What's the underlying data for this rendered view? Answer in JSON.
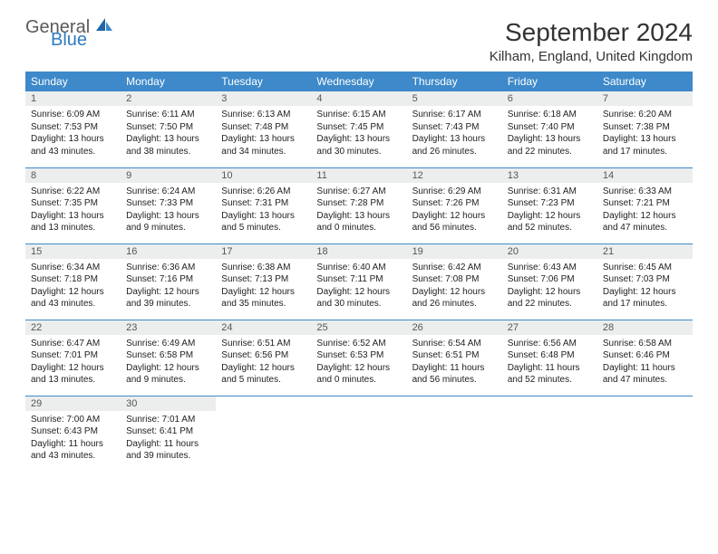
{
  "brand": {
    "general": "General",
    "blue": "Blue"
  },
  "title": "September 2024",
  "location": "Kilham, England, United Kingdom",
  "colors": {
    "header_bg": "#3d89c9",
    "header_text": "#ffffff",
    "daynum_bg": "#eceeee",
    "body_text": "#222222",
    "border": "#3d89c9",
    "logo_gray": "#5a5a5a",
    "logo_blue": "#2f7ac0"
  },
  "fonts": {
    "title_size": 28,
    "location_size": 15,
    "th_size": 12,
    "daynum_size": 11,
    "body_size": 10
  },
  "weekdays": [
    "Sunday",
    "Monday",
    "Tuesday",
    "Wednesday",
    "Thursday",
    "Friday",
    "Saturday"
  ],
  "days": [
    {
      "n": "1",
      "sr": "Sunrise: 6:09 AM",
      "ss": "Sunset: 7:53 PM",
      "dl": "Daylight: 13 hours and 43 minutes."
    },
    {
      "n": "2",
      "sr": "Sunrise: 6:11 AM",
      "ss": "Sunset: 7:50 PM",
      "dl": "Daylight: 13 hours and 38 minutes."
    },
    {
      "n": "3",
      "sr": "Sunrise: 6:13 AM",
      "ss": "Sunset: 7:48 PM",
      "dl": "Daylight: 13 hours and 34 minutes."
    },
    {
      "n": "4",
      "sr": "Sunrise: 6:15 AM",
      "ss": "Sunset: 7:45 PM",
      "dl": "Daylight: 13 hours and 30 minutes."
    },
    {
      "n": "5",
      "sr": "Sunrise: 6:17 AM",
      "ss": "Sunset: 7:43 PM",
      "dl": "Daylight: 13 hours and 26 minutes."
    },
    {
      "n": "6",
      "sr": "Sunrise: 6:18 AM",
      "ss": "Sunset: 7:40 PM",
      "dl": "Daylight: 13 hours and 22 minutes."
    },
    {
      "n": "7",
      "sr": "Sunrise: 6:20 AM",
      "ss": "Sunset: 7:38 PM",
      "dl": "Daylight: 13 hours and 17 minutes."
    },
    {
      "n": "8",
      "sr": "Sunrise: 6:22 AM",
      "ss": "Sunset: 7:35 PM",
      "dl": "Daylight: 13 hours and 13 minutes."
    },
    {
      "n": "9",
      "sr": "Sunrise: 6:24 AM",
      "ss": "Sunset: 7:33 PM",
      "dl": "Daylight: 13 hours and 9 minutes."
    },
    {
      "n": "10",
      "sr": "Sunrise: 6:26 AM",
      "ss": "Sunset: 7:31 PM",
      "dl": "Daylight: 13 hours and 5 minutes."
    },
    {
      "n": "11",
      "sr": "Sunrise: 6:27 AM",
      "ss": "Sunset: 7:28 PM",
      "dl": "Daylight: 13 hours and 0 minutes."
    },
    {
      "n": "12",
      "sr": "Sunrise: 6:29 AM",
      "ss": "Sunset: 7:26 PM",
      "dl": "Daylight: 12 hours and 56 minutes."
    },
    {
      "n": "13",
      "sr": "Sunrise: 6:31 AM",
      "ss": "Sunset: 7:23 PM",
      "dl": "Daylight: 12 hours and 52 minutes."
    },
    {
      "n": "14",
      "sr": "Sunrise: 6:33 AM",
      "ss": "Sunset: 7:21 PM",
      "dl": "Daylight: 12 hours and 47 minutes."
    },
    {
      "n": "15",
      "sr": "Sunrise: 6:34 AM",
      "ss": "Sunset: 7:18 PM",
      "dl": "Daylight: 12 hours and 43 minutes."
    },
    {
      "n": "16",
      "sr": "Sunrise: 6:36 AM",
      "ss": "Sunset: 7:16 PM",
      "dl": "Daylight: 12 hours and 39 minutes."
    },
    {
      "n": "17",
      "sr": "Sunrise: 6:38 AM",
      "ss": "Sunset: 7:13 PM",
      "dl": "Daylight: 12 hours and 35 minutes."
    },
    {
      "n": "18",
      "sr": "Sunrise: 6:40 AM",
      "ss": "Sunset: 7:11 PM",
      "dl": "Daylight: 12 hours and 30 minutes."
    },
    {
      "n": "19",
      "sr": "Sunrise: 6:42 AM",
      "ss": "Sunset: 7:08 PM",
      "dl": "Daylight: 12 hours and 26 minutes."
    },
    {
      "n": "20",
      "sr": "Sunrise: 6:43 AM",
      "ss": "Sunset: 7:06 PM",
      "dl": "Daylight: 12 hours and 22 minutes."
    },
    {
      "n": "21",
      "sr": "Sunrise: 6:45 AM",
      "ss": "Sunset: 7:03 PM",
      "dl": "Daylight: 12 hours and 17 minutes."
    },
    {
      "n": "22",
      "sr": "Sunrise: 6:47 AM",
      "ss": "Sunset: 7:01 PM",
      "dl": "Daylight: 12 hours and 13 minutes."
    },
    {
      "n": "23",
      "sr": "Sunrise: 6:49 AM",
      "ss": "Sunset: 6:58 PM",
      "dl": "Daylight: 12 hours and 9 minutes."
    },
    {
      "n": "24",
      "sr": "Sunrise: 6:51 AM",
      "ss": "Sunset: 6:56 PM",
      "dl": "Daylight: 12 hours and 5 minutes."
    },
    {
      "n": "25",
      "sr": "Sunrise: 6:52 AM",
      "ss": "Sunset: 6:53 PM",
      "dl": "Daylight: 12 hours and 0 minutes."
    },
    {
      "n": "26",
      "sr": "Sunrise: 6:54 AM",
      "ss": "Sunset: 6:51 PM",
      "dl": "Daylight: 11 hours and 56 minutes."
    },
    {
      "n": "27",
      "sr": "Sunrise: 6:56 AM",
      "ss": "Sunset: 6:48 PM",
      "dl": "Daylight: 11 hours and 52 minutes."
    },
    {
      "n": "28",
      "sr": "Sunrise: 6:58 AM",
      "ss": "Sunset: 6:46 PM",
      "dl": "Daylight: 11 hours and 47 minutes."
    },
    {
      "n": "29",
      "sr": "Sunrise: 7:00 AM",
      "ss": "Sunset: 6:43 PM",
      "dl": "Daylight: 11 hours and 43 minutes."
    },
    {
      "n": "30",
      "sr": "Sunrise: 7:01 AM",
      "ss": "Sunset: 6:41 PM",
      "dl": "Daylight: 11 hours and 39 minutes."
    }
  ]
}
